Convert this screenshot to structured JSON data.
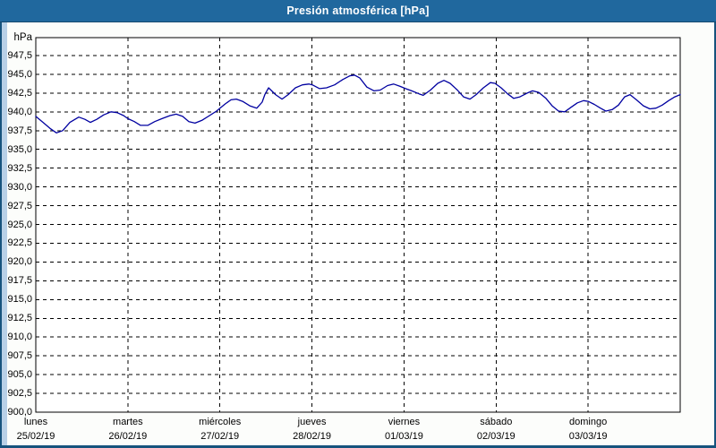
{
  "window": {
    "title": "Presión atmosférica [hPa]"
  },
  "colors": {
    "titlebar_bg": "#20689E",
    "titlebar_text": "#FFFFFF",
    "frame_border": "#16537D",
    "left_strip": "#B8D0E7",
    "content_bg": "#FCFDFB",
    "plot_bg": "#FFFFFF",
    "grid": "#000000",
    "plot_border": "#000000",
    "series_line": "#0000A0",
    "label_text": "#000000"
  },
  "chart_data": {
    "type": "line",
    "title": "Presión atmosférica [hPa]",
    "ylabel": "hPa",
    "ylim": [
      900,
      950
    ],
    "ytick_step": 2.5,
    "ytick_labels": [
      "947,5",
      "945,0",
      "942,5",
      "940,0",
      "937,5",
      "935,0",
      "932,5",
      "930,0",
      "927,5",
      "925,0",
      "922,5",
      "920,0",
      "917,5",
      "915,0",
      "912,5",
      "910,0",
      "907,5",
      "905,0",
      "902,5",
      "900,0"
    ],
    "grid": "dashed",
    "legend": "none",
    "x_span_hours": 168,
    "x_days": [
      {
        "weekday": "lunes",
        "date": "25/02/19"
      },
      {
        "weekday": "martes",
        "date": "26/02/19"
      },
      {
        "weekday": "miércoles",
        "date": "27/02/19"
      },
      {
        "weekday": "jueves",
        "date": "28/02/19"
      },
      {
        "weekday": "viernes",
        "date": "01/03/19"
      },
      {
        "weekday": "sábado",
        "date": "02/03/19"
      },
      {
        "weekday": "domingo",
        "date": "03/03/19"
      }
    ],
    "series": [
      {
        "name": "Presión atmosférica",
        "unit": "hPa",
        "color": "#0000A0",
        "points_hour_hpa": [
          [
            0,
            939.4
          ],
          [
            1.9,
            938.6
          ],
          [
            3.7,
            937.8
          ],
          [
            5.4,
            937.2
          ],
          [
            7,
            937.5
          ],
          [
            8.9,
            938.6
          ],
          [
            11.2,
            939.3
          ],
          [
            12.8,
            939.0
          ],
          [
            14.2,
            938.6
          ],
          [
            15.9,
            939.0
          ],
          [
            17.7,
            939.6
          ],
          [
            19.6,
            940.0
          ],
          [
            21.2,
            939.9
          ],
          [
            22.9,
            939.5
          ],
          [
            24,
            939.1
          ],
          [
            25.7,
            938.7
          ],
          [
            27.3,
            938.2
          ],
          [
            29.2,
            938.2
          ],
          [
            31,
            938.7
          ],
          [
            32.9,
            939.1
          ],
          [
            35,
            939.5
          ],
          [
            36.6,
            939.7
          ],
          [
            38.3,
            939.4
          ],
          [
            39.9,
            938.7
          ],
          [
            41.5,
            938.5
          ],
          [
            43.4,
            938.9
          ],
          [
            45.3,
            939.5
          ],
          [
            47.1,
            940.1
          ],
          [
            48.3,
            940.6
          ],
          [
            49.5,
            941.1
          ],
          [
            50.9,
            941.6
          ],
          [
            52.3,
            941.7
          ],
          [
            53.9,
            941.4
          ],
          [
            55.8,
            940.8
          ],
          [
            57.6,
            940.5
          ],
          [
            59,
            941.3
          ],
          [
            59.7,
            942.3
          ],
          [
            60.7,
            943.2
          ],
          [
            62.5,
            942.3
          ],
          [
            64.2,
            941.7
          ],
          [
            65.8,
            942.3
          ],
          [
            67.7,
            943.2
          ],
          [
            69.5,
            943.6
          ],
          [
            71.2,
            943.7
          ],
          [
            72.1,
            943.6
          ],
          [
            74,
            943.1
          ],
          [
            75.8,
            943.2
          ],
          [
            77.9,
            943.6
          ],
          [
            80,
            944.3
          ],
          [
            81.9,
            944.8
          ],
          [
            83.1,
            944.9
          ],
          [
            84.5,
            944.5
          ],
          [
            86.3,
            943.3
          ],
          [
            88.2,
            942.8
          ],
          [
            89.8,
            942.9
          ],
          [
            91.7,
            943.5
          ],
          [
            93.3,
            943.7
          ],
          [
            95,
            943.4
          ],
          [
            96.4,
            943.1
          ],
          [
            98,
            942.8
          ],
          [
            99.9,
            942.4
          ],
          [
            101,
            942.2
          ],
          [
            102.9,
            942.9
          ],
          [
            104.8,
            943.8
          ],
          [
            106.4,
            944.2
          ],
          [
            108,
            943.8
          ],
          [
            109.9,
            942.9
          ],
          [
            111.5,
            942.0
          ],
          [
            113.2,
            941.7
          ],
          [
            114.8,
            942.3
          ],
          [
            116.7,
            943.2
          ],
          [
            118.5,
            943.9
          ],
          [
            119.7,
            943.8
          ],
          [
            121.3,
            943.2
          ],
          [
            123,
            942.4
          ],
          [
            124.6,
            941.8
          ],
          [
            126.2,
            942.0
          ],
          [
            128.1,
            942.5
          ],
          [
            129.5,
            942.8
          ],
          [
            131.1,
            942.6
          ],
          [
            133,
            941.8
          ],
          [
            134.6,
            940.8
          ],
          [
            136.3,
            940.1
          ],
          [
            137.9,
            940.0
          ],
          [
            139.5,
            940.6
          ],
          [
            141.2,
            941.2
          ],
          [
            142.8,
            941.5
          ],
          [
            144,
            941.4
          ],
          [
            145.6,
            941.0
          ],
          [
            147.2,
            940.5
          ],
          [
            148.6,
            940.1
          ],
          [
            150.3,
            940.3
          ],
          [
            151.9,
            940.9
          ],
          [
            153.5,
            942.0
          ],
          [
            154.9,
            942.3
          ],
          [
            156.6,
            941.6
          ],
          [
            158.4,
            940.8
          ],
          [
            160.1,
            940.4
          ],
          [
            161.7,
            940.5
          ],
          [
            163.3,
            940.9
          ],
          [
            165,
            941.5
          ],
          [
            166.6,
            942.0
          ],
          [
            168,
            942.3
          ]
        ]
      }
    ]
  }
}
